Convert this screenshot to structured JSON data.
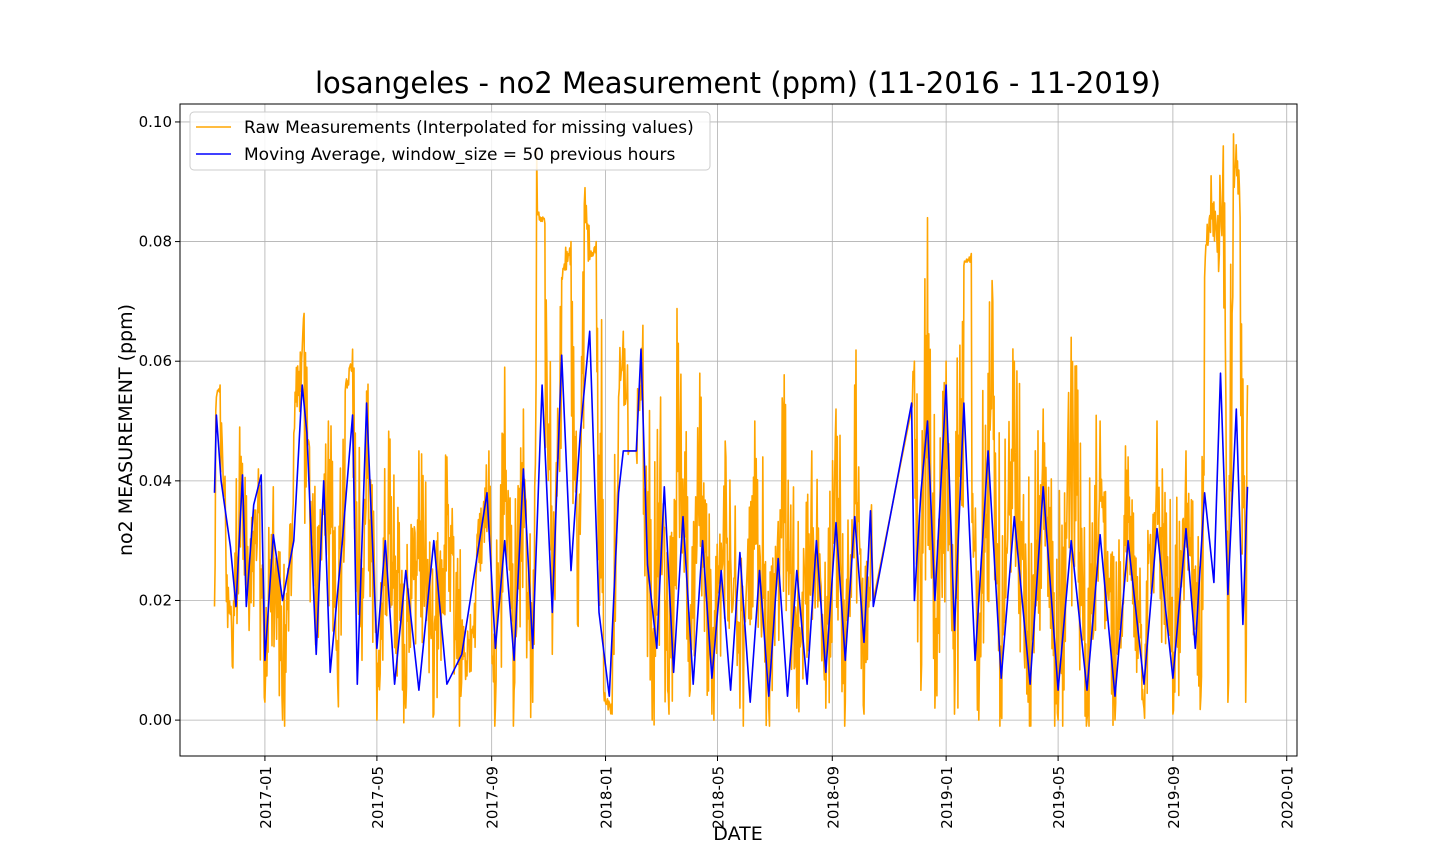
{
  "chart_data": {
    "type": "line",
    "title": "losangeles - no2 Measurement (ppm) (11-2016 - 11-2019)",
    "xlabel": "DATE",
    "ylabel": "no2 MEASUREMENT (ppm)",
    "xlim": [
      "2016-10-02",
      "2020-01-12"
    ],
    "ylim": [
      -0.006,
      0.103
    ],
    "x_ticks": [
      "2017-01",
      "2017-05",
      "2017-09",
      "2018-01",
      "2018-05",
      "2018-09",
      "2019-01",
      "2019-05",
      "2019-09",
      "2020-01"
    ],
    "y_ticks": [
      "0.00",
      "0.02",
      "0.04",
      "0.06",
      "0.08",
      "0.10"
    ],
    "grid": true,
    "legend_position": "top-left",
    "series": [
      {
        "name": "Raw Measurements (Interpolated for missing values)",
        "color": "#ffa500",
        "style": "spiky",
        "points": [
          [
            "2016-11-08",
            0.019
          ],
          [
            "2016-11-10",
            0.054
          ],
          [
            "2016-11-14",
            0.056
          ],
          [
            "2016-11-20",
            0.031
          ],
          [
            "2016-11-27",
            0.009
          ],
          [
            "2016-12-05",
            0.049
          ],
          [
            "2016-12-15",
            0.015
          ],
          [
            "2016-12-25",
            0.042
          ],
          [
            "2017-01-01",
            0.003
          ],
          [
            "2017-01-10",
            0.039
          ],
          [
            "2017-01-20",
            0.0
          ],
          [
            "2017-02-01",
            0.048
          ],
          [
            "2017-02-10",
            0.062
          ],
          [
            "2017-02-12",
            0.068
          ],
          [
            "2017-02-25",
            0.015
          ],
          [
            "2017-03-10",
            0.05
          ],
          [
            "2017-03-20",
            0.006
          ],
          [
            "2017-03-28",
            0.055
          ],
          [
            "2017-04-05",
            0.062
          ],
          [
            "2017-04-15",
            0.01
          ],
          [
            "2017-04-20",
            0.055
          ],
          [
            "2017-05-01",
            0.0
          ],
          [
            "2017-05-15",
            0.047
          ],
          [
            "2017-06-01",
            0.002
          ],
          [
            "2017-06-15",
            0.045
          ],
          [
            "2017-07-01",
            0.001
          ],
          [
            "2017-07-15",
            0.044
          ],
          [
            "2017-07-30",
            0.004
          ],
          [
            "2017-08-15",
            0.023
          ],
          [
            "2017-08-29",
            0.045
          ],
          [
            "2017-09-05",
            0.002
          ],
          [
            "2017-09-15",
            0.059
          ],
          [
            "2017-09-25",
            0.005
          ],
          [
            "2017-10-05",
            0.052
          ],
          [
            "2017-10-15",
            0.003
          ],
          [
            "2017-10-20",
            0.085
          ],
          [
            "2017-10-28",
            0.083
          ],
          [
            "2017-11-05",
            0.011
          ],
          [
            "2017-11-15",
            0.074
          ],
          [
            "2017-11-25",
            0.08
          ],
          [
            "2017-12-02",
            0.016
          ],
          [
            "2017-12-10",
            0.089
          ],
          [
            "2017-12-15",
            0.077
          ],
          [
            "2017-12-22",
            0.08
          ],
          [
            "2017-12-30",
            0.005
          ],
          [
            "2018-01-08",
            0.001
          ],
          [
            "2018-01-15",
            0.054
          ],
          [
            "2018-01-20",
            0.065
          ],
          [
            "2018-01-26",
            0.045
          ],
          [
            "2018-02-03",
            0.045
          ],
          [
            "2018-02-10",
            0.066
          ],
          [
            "2018-02-20",
            0.0
          ],
          [
            "2018-03-01",
            0.054
          ],
          [
            "2018-03-10",
            0.001
          ],
          [
            "2018-03-20",
            0.063
          ],
          [
            "2018-04-01",
            0.004
          ],
          [
            "2018-04-12",
            0.058
          ],
          [
            "2018-04-25",
            0.001
          ],
          [
            "2018-05-10",
            0.044
          ],
          [
            "2018-05-25",
            0.002
          ],
          [
            "2018-06-10",
            0.05
          ],
          [
            "2018-06-25",
            0.002
          ],
          [
            "2018-07-10",
            0.052
          ],
          [
            "2018-07-25",
            0.002
          ],
          [
            "2018-08-10",
            0.045
          ],
          [
            "2018-08-25",
            0.002
          ],
          [
            "2018-09-05",
            0.052
          ],
          [
            "2018-09-15",
            0.003
          ],
          [
            "2018-09-25",
            0.056
          ],
          [
            "2018-10-05",
            0.001
          ],
          [
            "2018-10-13",
            0.036
          ],
          [
            "2018-10-15",
            0.02
          ],
          [
            "2018-11-25",
            0.052
          ],
          [
            "2018-11-28",
            0.06
          ],
          [
            "2018-12-05",
            0.005
          ],
          [
            "2018-12-12",
            0.084
          ],
          [
            "2018-12-20",
            0.002
          ],
          [
            "2019-01-01",
            0.06
          ],
          [
            "2019-01-10",
            0.001
          ],
          [
            "2019-01-20",
            0.076
          ],
          [
            "2019-01-28",
            0.078
          ],
          [
            "2019-02-05",
            0.0
          ],
          [
            "2019-02-20",
            0.07
          ],
          [
            "2019-03-01",
            0.001
          ],
          [
            "2019-03-15",
            0.06
          ],
          [
            "2019-04-01",
            0.0
          ],
          [
            "2019-04-15",
            0.052
          ],
          [
            "2019-05-01",
            0.0
          ],
          [
            "2019-05-15",
            0.064
          ],
          [
            "2019-06-01",
            0.0
          ],
          [
            "2019-06-15",
            0.05
          ],
          [
            "2019-07-01",
            0.0
          ],
          [
            "2019-07-15",
            0.044
          ],
          [
            "2019-08-01",
            0.002
          ],
          [
            "2019-08-15",
            0.05
          ],
          [
            "2019-09-01",
            0.001
          ],
          [
            "2019-09-15",
            0.045
          ],
          [
            "2019-10-01",
            0.004
          ],
          [
            "2019-10-05",
            0.074
          ],
          [
            "2019-10-12",
            0.091
          ],
          [
            "2019-10-20",
            0.075
          ],
          [
            "2019-10-25",
            0.096
          ],
          [
            "2019-10-30",
            0.003
          ],
          [
            "2019-11-05",
            0.098
          ],
          [
            "2019-11-12",
            0.084
          ],
          [
            "2019-11-18",
            0.003
          ],
          [
            "2019-11-20",
            0.056
          ]
        ]
      },
      {
        "name": "Moving Average, window_size = 50 previous hours",
        "color": "#0000ff",
        "style": "line",
        "points": [
          [
            "2016-11-08",
            0.038
          ],
          [
            "2016-11-10",
            0.051
          ],
          [
            "2016-11-15",
            0.04
          ],
          [
            "2016-11-25",
            0.029
          ],
          [
            "2016-12-01",
            0.019
          ],
          [
            "2016-12-08",
            0.041
          ],
          [
            "2016-12-12",
            0.019
          ],
          [
            "2016-12-20",
            0.036
          ],
          [
            "2016-12-28",
            0.041
          ],
          [
            "2017-01-01",
            0.01
          ],
          [
            "2017-01-10",
            0.031
          ],
          [
            "2017-01-20",
            0.02
          ],
          [
            "2017-02-01",
            0.03
          ],
          [
            "2017-02-10",
            0.056
          ],
          [
            "2017-02-15",
            0.048
          ],
          [
            "2017-02-25",
            0.011
          ],
          [
            "2017-03-05",
            0.04
          ],
          [
            "2017-03-12",
            0.008
          ],
          [
            "2017-03-25",
            0.03
          ],
          [
            "2017-04-05",
            0.051
          ],
          [
            "2017-04-10",
            0.006
          ],
          [
            "2017-04-20",
            0.053
          ],
          [
            "2017-05-01",
            0.012
          ],
          [
            "2017-05-10",
            0.03
          ],
          [
            "2017-05-20",
            0.006
          ],
          [
            "2017-06-01",
            0.025
          ],
          [
            "2017-06-15",
            0.005
          ],
          [
            "2017-07-01",
            0.03
          ],
          [
            "2017-07-15",
            0.006
          ],
          [
            "2017-07-31",
            0.011
          ],
          [
            "2017-08-15",
            0.026
          ],
          [
            "2017-08-27",
            0.038
          ],
          [
            "2017-09-05",
            0.012
          ],
          [
            "2017-09-15",
            0.03
          ],
          [
            "2017-09-25",
            0.01
          ],
          [
            "2017-10-05",
            0.042
          ],
          [
            "2017-10-15",
            0.012
          ],
          [
            "2017-10-25",
            0.056
          ],
          [
            "2017-11-05",
            0.018
          ],
          [
            "2017-11-15",
            0.061
          ],
          [
            "2017-11-25",
            0.025
          ],
          [
            "2017-12-05",
            0.048
          ],
          [
            "2017-12-15",
            0.065
          ],
          [
            "2017-12-25",
            0.018
          ],
          [
            "2018-01-05",
            0.004
          ],
          [
            "2018-01-15",
            0.038
          ],
          [
            "2018-01-20",
            0.045
          ],
          [
            "2018-01-26",
            0.045
          ],
          [
            "2018-02-03",
            0.045
          ],
          [
            "2018-02-08",
            0.062
          ],
          [
            "2018-02-15",
            0.026
          ],
          [
            "2018-02-25",
            0.012
          ],
          [
            "2018-03-05",
            0.039
          ],
          [
            "2018-03-15",
            0.008
          ],
          [
            "2018-03-25",
            0.034
          ],
          [
            "2018-04-05",
            0.006
          ],
          [
            "2018-04-15",
            0.03
          ],
          [
            "2018-04-25",
            0.007
          ],
          [
            "2018-05-05",
            0.025
          ],
          [
            "2018-05-15",
            0.005
          ],
          [
            "2018-05-25",
            0.028
          ],
          [
            "2018-06-05",
            0.003
          ],
          [
            "2018-06-15",
            0.025
          ],
          [
            "2018-06-25",
            0.004
          ],
          [
            "2018-07-05",
            0.027
          ],
          [
            "2018-07-15",
            0.004
          ],
          [
            "2018-07-25",
            0.025
          ],
          [
            "2018-08-05",
            0.006
          ],
          [
            "2018-08-15",
            0.03
          ],
          [
            "2018-08-25",
            0.008
          ],
          [
            "2018-09-05",
            0.033
          ],
          [
            "2018-09-15",
            0.01
          ],
          [
            "2018-09-25",
            0.034
          ],
          [
            "2018-10-05",
            0.013
          ],
          [
            "2018-10-12",
            0.035
          ],
          [
            "2018-10-15",
            0.019
          ],
          [
            "2018-11-25",
            0.053
          ],
          [
            "2018-11-28",
            0.02
          ],
          [
            "2018-12-05",
            0.038
          ],
          [
            "2018-12-12",
            0.05
          ],
          [
            "2018-12-20",
            0.02
          ],
          [
            "2019-01-01",
            0.056
          ],
          [
            "2019-01-10",
            0.015
          ],
          [
            "2019-01-20",
            0.053
          ],
          [
            "2019-02-01",
            0.01
          ],
          [
            "2019-02-15",
            0.045
          ],
          [
            "2019-03-01",
            0.007
          ],
          [
            "2019-03-15",
            0.034
          ],
          [
            "2019-04-01",
            0.006
          ],
          [
            "2019-04-15",
            0.039
          ],
          [
            "2019-05-01",
            0.005
          ],
          [
            "2019-05-15",
            0.03
          ],
          [
            "2019-06-01",
            0.005
          ],
          [
            "2019-06-15",
            0.031
          ],
          [
            "2019-07-01",
            0.004
          ],
          [
            "2019-07-15",
            0.03
          ],
          [
            "2019-08-01",
            0.006
          ],
          [
            "2019-08-15",
            0.032
          ],
          [
            "2019-09-01",
            0.007
          ],
          [
            "2019-09-15",
            0.032
          ],
          [
            "2019-09-25",
            0.012
          ],
          [
            "2019-10-05",
            0.038
          ],
          [
            "2019-10-15",
            0.023
          ],
          [
            "2019-10-22",
            0.058
          ],
          [
            "2019-10-30",
            0.021
          ],
          [
            "2019-11-08",
            0.052
          ],
          [
            "2019-11-15",
            0.016
          ],
          [
            "2019-11-20",
            0.039
          ]
        ]
      }
    ]
  }
}
